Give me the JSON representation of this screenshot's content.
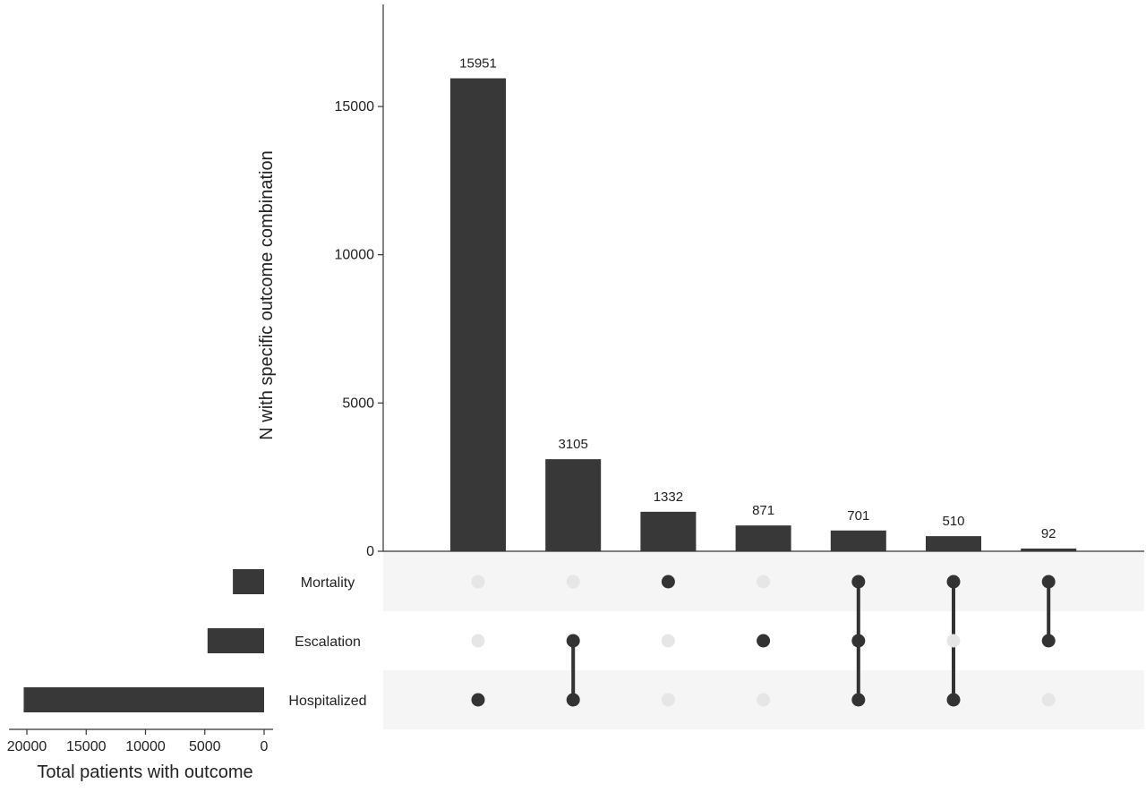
{
  "chart_data": {
    "type": "bar",
    "subtype": "upset",
    "intersections": [
      {
        "sets": [
          "Hospitalized"
        ],
        "value": 15951,
        "label": "15951"
      },
      {
        "sets": [
          "Escalation",
          "Hospitalized"
        ],
        "value": 3105,
        "label": "3105"
      },
      {
        "sets": [
          "Mortality"
        ],
        "value": 1332,
        "label": "1332"
      },
      {
        "sets": [
          "Escalation"
        ],
        "value": 871,
        "label": "871"
      },
      {
        "sets": [
          "Mortality",
          "Escalation",
          "Hospitalized"
        ],
        "value": 701,
        "label": "701"
      },
      {
        "sets": [
          "Mortality",
          "Hospitalized"
        ],
        "value": 510,
        "label": "510"
      },
      {
        "sets": [
          "Mortality",
          "Escalation"
        ],
        "value": 92,
        "label": "92"
      }
    ],
    "ylabel": "N with specific outcome combination",
    "ylim": [
      0,
      18000
    ],
    "yticks": [
      0,
      5000,
      10000,
      15000
    ],
    "ytick_labels": [
      "0",
      "5000",
      "10000",
      "15000"
    ],
    "sets": [
      {
        "name": "Mortality",
        "total": 2635
      },
      {
        "name": "Escalation",
        "total": 4769
      },
      {
        "name": "Hospitalized",
        "total": 20267
      }
    ],
    "set_size_xlabel": "Total patients with outcome",
    "set_size_xlim": [
      0,
      21500
    ],
    "set_size_xticks": [
      20000,
      15000,
      10000,
      5000,
      0
    ],
    "set_size_xtick_labels": [
      "20000",
      "15000",
      "10000",
      "5000",
      "0"
    ],
    "colors": {
      "bar": "#383838",
      "dot_active": "#333333",
      "dot_inactive": "#e6e6e6",
      "stripe": "#f5f5f5",
      "axis": "#333333"
    },
    "grid": false
  }
}
